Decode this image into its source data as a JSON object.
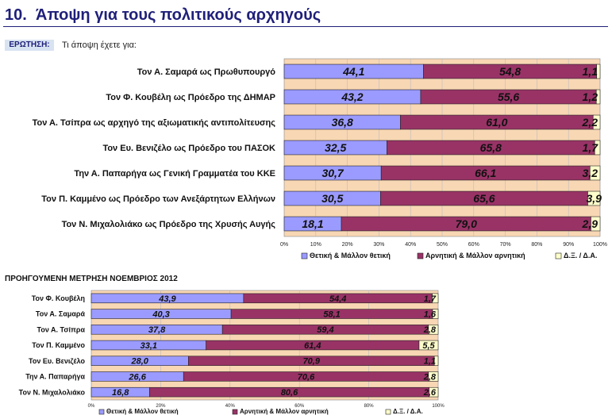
{
  "header": {
    "number": "10.",
    "title": "Άποψη για τους πολιτικούς αρχηγούς",
    "question_label": "ΕΡΩΤΗΣΗ:",
    "question_text": "Τι άποψη έχετε για:"
  },
  "colors": {
    "positive": "#9b9bff",
    "negative": "#993366",
    "dk": "#ffffcc",
    "plot_bg": "#f8d7b4"
  },
  "chart_data": [
    {
      "type": "bar",
      "stacked": true,
      "orientation": "horizontal",
      "categories": [
        "Τον Α. Σαμαρά ως Πρωθυπουργό",
        "Τον Φ. Κουβέλη ως Πρόεδρο της ΔΗΜΑΡ",
        "Τον Α. Τσίπρα ως αρχηγό της αξιωματικής αντιπολίτευσης",
        "Τον Ευ. Βενιζέλο ως Πρόεδρο του ΠΑΣΟΚ",
        "Την Α. Παπαρήγα ως Γενική Γραμματέα του ΚΚΕ",
        "Τον Π. Καμμένο ως Πρόεδρο των Ανεξάρτητων Ελλήνων",
        "Τον Ν. Μιχαλολιάκο ως Πρόεδρο της Χρυσής Αυγής"
      ],
      "series": [
        {
          "name": "Θετική & Μάλλον θετική",
          "values": [
            44.1,
            43.2,
            36.8,
            32.5,
            30.7,
            30.5,
            18.1
          ],
          "labels": [
            "44,1",
            "43,2",
            "36,8",
            "32,5",
            "30,7",
            "30,5",
            "18,1"
          ]
        },
        {
          "name": "Αρνητική & Μάλλον αρνητική",
          "values": [
            54.8,
            55.6,
            61.0,
            65.8,
            66.1,
            65.6,
            79.0
          ],
          "labels": [
            "54,8",
            "55,6",
            "61,0",
            "65,8",
            "66,1",
            "65,6",
            "79,0"
          ]
        },
        {
          "name": "Δ.Ξ. / Δ.Α.",
          "values": [
            1.1,
            1.2,
            2.2,
            1.7,
            3.2,
            3.9,
            2.9
          ],
          "labels": [
            "1,1",
            "1,2",
            "2,2",
            "1,7",
            "3,2",
            "3,9",
            "2,9"
          ]
        }
      ],
      "xlim": [
        0,
        100
      ],
      "ticks": [
        "0%",
        "10%",
        "20%",
        "30%",
        "40%",
        "50%",
        "60%",
        "70%",
        "80%",
        "90%",
        "100%"
      ],
      "grid": true,
      "legend": "bottom"
    },
    {
      "type": "bar",
      "stacked": true,
      "orientation": "horizontal",
      "title": "ΠΡΟΗΓΟΥΜΕΝΗ ΜΕΤΡΗΣΗ ΝΟΕΜΒΡΙΟΣ 2012",
      "categories": [
        "Τον Φ. Κουβέλη",
        "Τον Α. Σαμαρά",
        "Τον Α. Τσίπρα",
        "Τον Π. Καμμένο",
        "Τον Ευ. Βενιζέλο",
        "Την Α. Παπαρήγα",
        "Τον Ν. Μιχαλολιάκο"
      ],
      "series": [
        {
          "name": "Θετική & Μάλλον θετική",
          "values": [
            43.9,
            40.3,
            37.8,
            33.1,
            28.0,
            26.6,
            16.8
          ],
          "labels": [
            "43,9",
            "40,3",
            "37,8",
            "33,1",
            "28,0",
            "26,6",
            "16,8"
          ]
        },
        {
          "name": "Αρνητική & Μάλλον αρνητική",
          "values": [
            54.4,
            58.1,
            59.4,
            61.4,
            70.9,
            70.6,
            80.6
          ],
          "labels": [
            "54,4",
            "58,1",
            "59,4",
            "61,4",
            "70,9",
            "70,6",
            "80,6"
          ]
        },
        {
          "name": "Δ.Ξ. / Δ.Α.",
          "values": [
            1.7,
            1.6,
            2.8,
            5.5,
            1.1,
            2.8,
            2.6
          ],
          "labels": [
            "1,7",
            "1,6",
            "2,8",
            "5,5",
            "1,1",
            "2,8",
            "2,6"
          ]
        }
      ],
      "xlim": [
        0,
        100
      ],
      "ticks": [
        "0%",
        "20%",
        "40%",
        "60%",
        "80%",
        "100%"
      ],
      "grid": true,
      "legend": "bottom"
    }
  ]
}
